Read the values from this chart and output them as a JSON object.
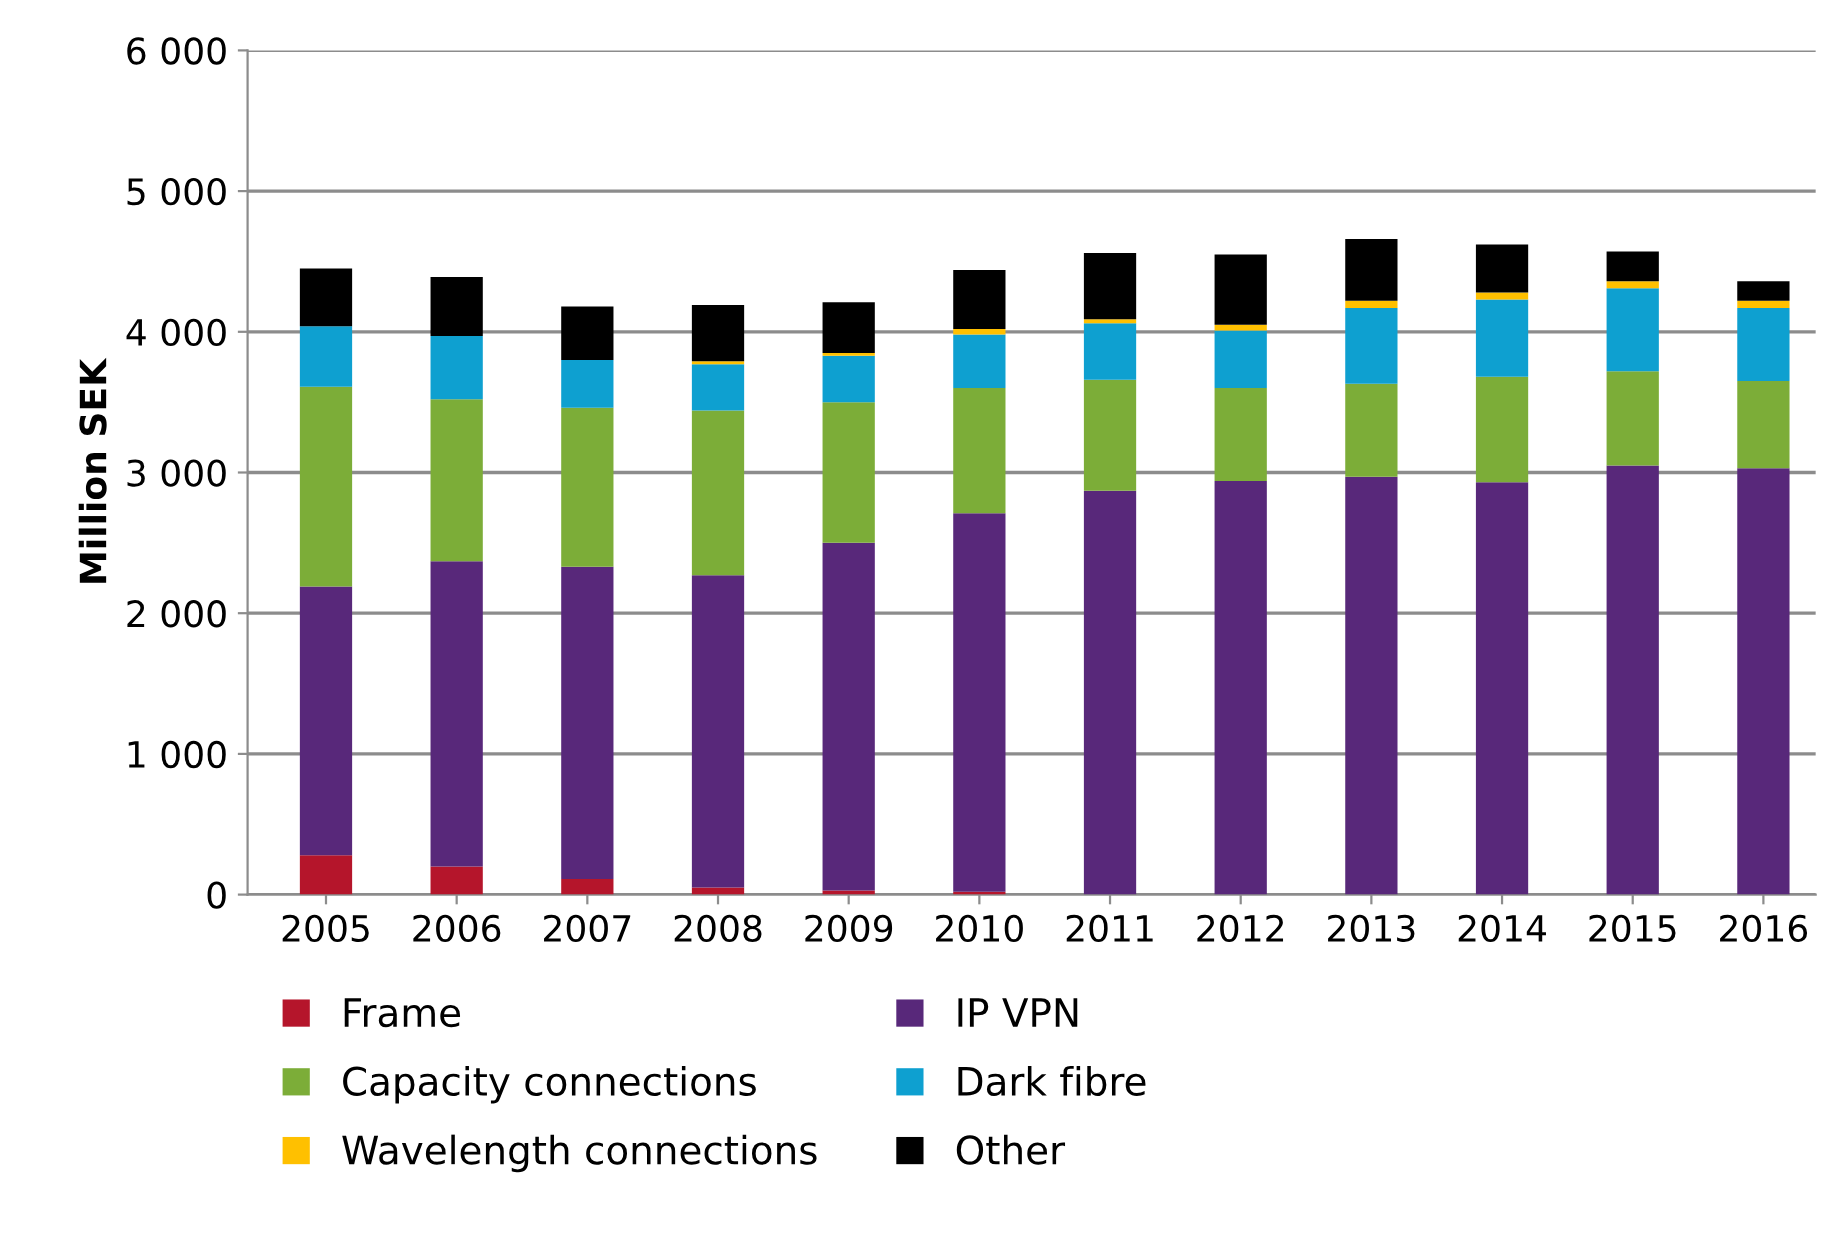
{
  "chart_data": {
    "type": "bar",
    "stacked": true,
    "ylabel": "Million SEK",
    "categories": [
      "2005",
      "2006",
      "2007",
      "2008",
      "2009",
      "2010",
      "2011",
      "2012",
      "2013",
      "2014",
      "2015",
      "2016"
    ],
    "series": [
      {
        "name": "Frame",
        "color": "#b5152b",
        "values": [
          280,
          200,
          110,
          50,
          30,
          20,
          0,
          0,
          0,
          0,
          0,
          0
        ]
      },
      {
        "name": "IP VPN",
        "color": "#58287a",
        "values": [
          1910,
          2170,
          2220,
          2220,
          2470,
          2690,
          2870,
          2940,
          2970,
          2930,
          3050,
          3030
        ]
      },
      {
        "name": "Capacity connections",
        "color": "#7cad38",
        "values": [
          1420,
          1150,
          1130,
          1170,
          1000,
          890,
          790,
          660,
          660,
          750,
          670,
          620
        ]
      },
      {
        "name": "Dark fibre",
        "color": "#0ea0d0",
        "values": [
          430,
          450,
          340,
          330,
          330,
          380,
          400,
          410,
          540,
          550,
          590,
          520
        ]
      },
      {
        "name": "Wavelength connections",
        "color": "#ffc000",
        "values": [
          0,
          0,
          0,
          20,
          20,
          40,
          30,
          40,
          50,
          50,
          50,
          50
        ]
      },
      {
        "name": "Other",
        "color": "#000000",
        "values": [
          410,
          420,
          380,
          400,
          360,
          420,
          470,
          500,
          440,
          340,
          210,
          140
        ]
      }
    ],
    "ylim": [
      0,
      6000
    ],
    "yticks": [
      {
        "value": 0,
        "label": "0"
      },
      {
        "value": 1000,
        "label": "1 000"
      },
      {
        "value": 2000,
        "label": "2 000"
      },
      {
        "value": 3000,
        "label": "3 000"
      },
      {
        "value": 4000,
        "label": "4 000"
      },
      {
        "value": 5000,
        "label": "5 000"
      },
      {
        "value": 6000,
        "label": "6 000"
      }
    ],
    "grid": "y",
    "legend": "bottom"
  }
}
